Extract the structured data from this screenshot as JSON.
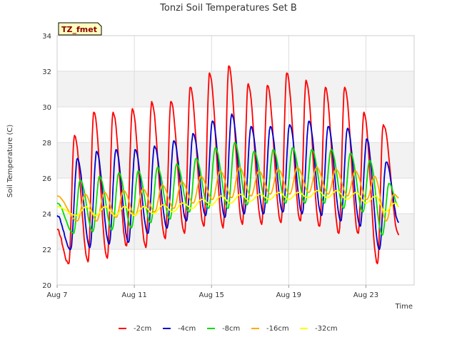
{
  "chart_data": {
    "type": "line",
    "title": "Tonzi Soil Temperatures Set B",
    "xlabel": "Time",
    "ylabel": "Soil Temperature (C)",
    "badge": "TZ_fmet",
    "xlim": [
      7,
      25.5
    ],
    "ylim": [
      20,
      34
    ],
    "xticks": [
      7,
      11,
      15,
      19,
      23
    ],
    "xtick_labels": [
      "Aug 7",
      "Aug 11",
      "Aug 15",
      "Aug 19",
      "Aug 23"
    ],
    "yticks": [
      20,
      22,
      24,
      26,
      28,
      30,
      32,
      34
    ],
    "grid": true,
    "legend_position": "bottom",
    "series": [
      {
        "name": "-2cm",
        "color": "#ff0000",
        "peak_days": [
          7.9,
          8.9,
          9.9,
          10.9,
          11.9,
          12.9,
          13.9,
          14.9,
          15.9,
          16.9,
          17.9,
          18.9,
          19.9,
          20.9,
          21.9,
          22.9,
          23.9
        ],
        "peaks": [
          28.4,
          29.7,
          29.7,
          29.9,
          30.3,
          30.3,
          31.1,
          31.9,
          32.3,
          31.3,
          31.2,
          31.9,
          31.5,
          31.1,
          31.1,
          29.7,
          29.0
        ],
        "trough_days": [
          7.6,
          8.6,
          9.6,
          10.6,
          11.6,
          12.6,
          13.6,
          14.6,
          15.6,
          16.6,
          17.6,
          18.6,
          19.6,
          20.6,
          21.6,
          22.6,
          23.6
        ],
        "troughs": [
          21.2,
          21.3,
          21.5,
          22.2,
          22.1,
          22.6,
          22.9,
          23.3,
          23.2,
          23.4,
          23.4,
          23.5,
          23.6,
          23.3,
          22.9,
          22.9,
          21.2
        ],
        "start": 23.1,
        "end": 22.8
      },
      {
        "name": "-4cm",
        "color": "#0000cc",
        "peak_days": [
          8.05,
          9.05,
          10.05,
          11.05,
          12.05,
          13.05,
          14.05,
          15.05,
          16.05,
          17.05,
          18.05,
          19.05,
          20.05,
          21.05,
          22.05,
          23.05,
          24.05
        ],
        "peaks": [
          27.1,
          27.5,
          27.6,
          27.6,
          27.8,
          28.1,
          28.5,
          29.2,
          29.6,
          28.9,
          28.9,
          29.0,
          29.2,
          28.9,
          28.8,
          28.2,
          26.9
        ],
        "trough_days": [
          7.7,
          8.7,
          9.7,
          10.7,
          11.7,
          12.7,
          13.7,
          14.7,
          15.7,
          16.7,
          17.7,
          18.7,
          19.7,
          20.7,
          21.7,
          22.7,
          23.7
        ],
        "troughs": [
          22.0,
          22.1,
          22.3,
          22.4,
          22.9,
          23.2,
          23.6,
          23.9,
          23.8,
          24.0,
          24.0,
          24.1,
          24.0,
          23.9,
          23.6,
          23.3,
          22.0
        ],
        "start": 23.9,
        "end": 23.5
      },
      {
        "name": "-8cm",
        "color": "#00dd00",
        "peak_days": [
          8.2,
          9.2,
          10.2,
          11.2,
          12.2,
          13.2,
          14.2,
          15.2,
          16.2,
          17.2,
          18.2,
          19.2,
          20.2,
          21.2,
          22.2,
          23.2,
          24.2
        ],
        "peaks": [
          25.9,
          26.1,
          26.3,
          26.4,
          26.6,
          26.8,
          27.1,
          27.7,
          28.0,
          27.5,
          27.6,
          27.7,
          27.6,
          27.6,
          27.4,
          27.0,
          25.7
        ],
        "trough_days": [
          7.85,
          8.85,
          9.85,
          10.85,
          11.85,
          12.85,
          13.85,
          14.85,
          15.85,
          16.85,
          17.85,
          18.85,
          19.85,
          20.85,
          21.85,
          22.85,
          23.85
        ],
        "troughs": [
          22.9,
          23.0,
          23.1,
          23.2,
          23.5,
          23.7,
          24.1,
          24.3,
          24.3,
          24.5,
          24.6,
          24.6,
          24.6,
          24.6,
          24.3,
          24.1,
          22.8
        ],
        "start": 24.6,
        "end": 24.4
      },
      {
        "name": "-16cm",
        "color": "#ffaa00",
        "peak_days": [
          8.45,
          9.45,
          10.45,
          11.45,
          12.45,
          13.45,
          14.45,
          15.45,
          16.45,
          17.45,
          18.45,
          19.45,
          20.45,
          21.45,
          22.45,
          23.45,
          24.45
        ],
        "peaks": [
          25.1,
          25.2,
          25.3,
          25.4,
          25.6,
          25.8,
          26.1,
          26.4,
          26.6,
          26.4,
          26.5,
          26.6,
          26.6,
          26.5,
          26.4,
          26.1,
          25.1
        ],
        "trough_days": [
          8.05,
          9.05,
          10.05,
          11.05,
          12.05,
          13.05,
          14.05,
          15.05,
          16.05,
          17.05,
          18.05,
          19.05,
          20.05,
          21.05,
          22.05,
          23.05,
          24.05
        ],
        "troughs": [
          23.6,
          23.6,
          23.8,
          23.9,
          24.1,
          24.3,
          24.6,
          24.8,
          24.9,
          25.0,
          25.1,
          25.1,
          25.2,
          25.1,
          25.0,
          24.8,
          23.6
        ],
        "start": 25.0,
        "end": 24.9
      },
      {
        "name": "-32cm",
        "color": "#ffff00",
        "peak_days": [
          8.5,
          9.5,
          10.5,
          11.5,
          12.5,
          13.5,
          14.5,
          15.5,
          16.5,
          17.5,
          18.5,
          19.5,
          20.5,
          21.5,
          22.5,
          23.5,
          24.5
        ],
        "peaks": [
          24.4,
          24.4,
          24.4,
          24.4,
          24.5,
          24.6,
          24.8,
          25.0,
          25.1,
          25.1,
          25.2,
          25.2,
          25.3,
          25.3,
          25.2,
          25.0,
          24.6
        ],
        "trough_days": [
          8.0,
          9.0,
          10.0,
          11.0,
          12.0,
          13.0,
          14.0,
          15.0,
          16.0,
          17.0,
          18.0,
          19.0,
          20.0,
          21.0,
          22.0,
          23.0,
          24.0
        ],
        "troughs": [
          23.9,
          23.9,
          23.9,
          23.9,
          24.0,
          24.1,
          24.3,
          24.5,
          24.6,
          24.7,
          24.8,
          24.8,
          24.9,
          24.9,
          24.8,
          24.6,
          24.1
        ],
        "start": 24.4,
        "end": 24.4
      }
    ]
  }
}
